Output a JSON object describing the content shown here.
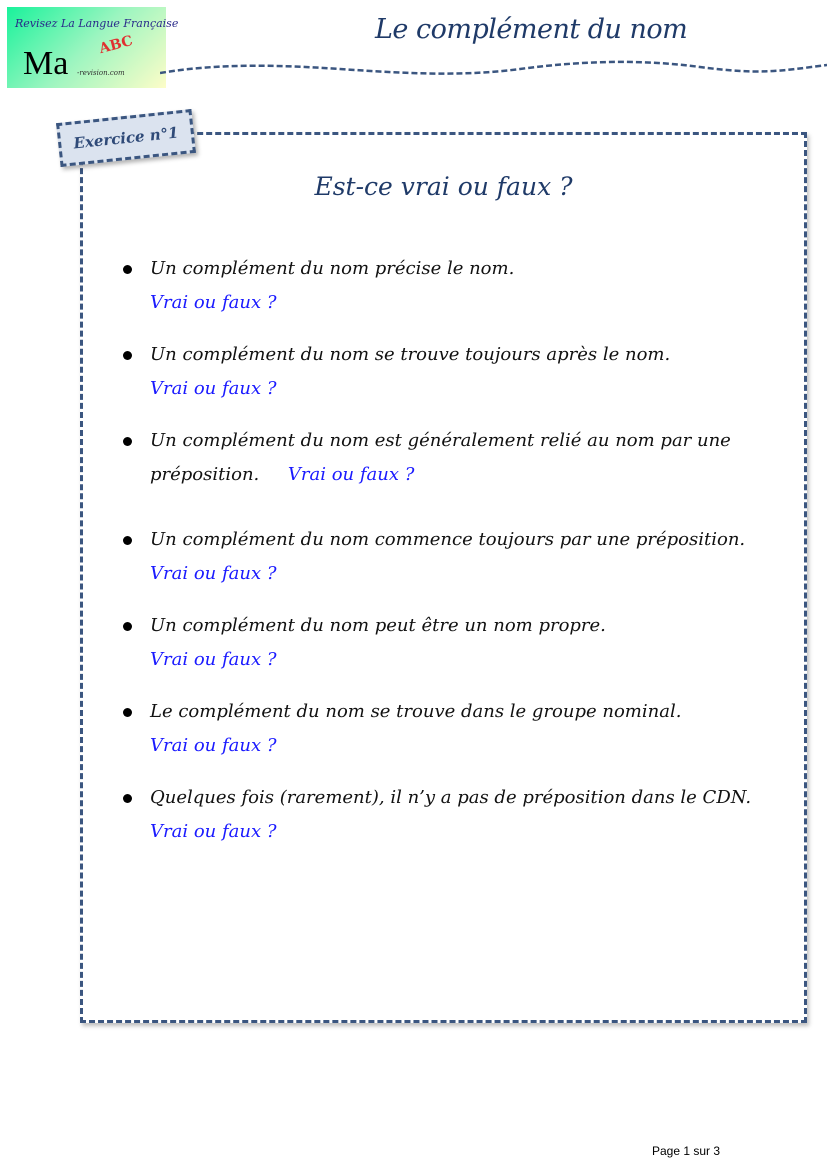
{
  "logo": {
    "tagline": "Revisez La Langue Française",
    "main": "Ma",
    "domain": "-revision.com",
    "abc": "ABC"
  },
  "header": {
    "title": "Le complément du nom"
  },
  "exercise": {
    "badge": "Exercice n°1",
    "heading": "Est-ce vrai ou faux ?",
    "items": [
      {
        "text": "Un complément du nom précise le nom.",
        "prompt": "Vrai ou faux ?"
      },
      {
        "text": "Un complément du nom se trouve toujours après le nom.",
        "prompt": "Vrai ou faux ?"
      },
      {
        "text": "Un complément du nom est généralement relié au nom par une",
        "text2": "préposition.",
        "prompt": "Vrai ou faux ?"
      },
      {
        "text": "Un complément du nom commence toujours  par une préposition.",
        "prompt": "Vrai ou faux ?"
      },
      {
        "text": "Un complément du nom peut être un nom propre.",
        "prompt": "Vrai ou faux ?"
      },
      {
        "text": "Le complément du nom se trouve dans le groupe nominal.",
        "prompt": "Vrai ou faux ?"
      },
      {
        "text": "Quelques fois (rarement), il n’y a pas de préposition dans le CDN.",
        "prompt": "Vrai ou faux ?"
      }
    ]
  },
  "footer": {
    "page": "Page 1 sur 3"
  },
  "colors": {
    "accent": "#3b5680",
    "prompt": "#1a1aff",
    "title": "#1f3a68"
  }
}
